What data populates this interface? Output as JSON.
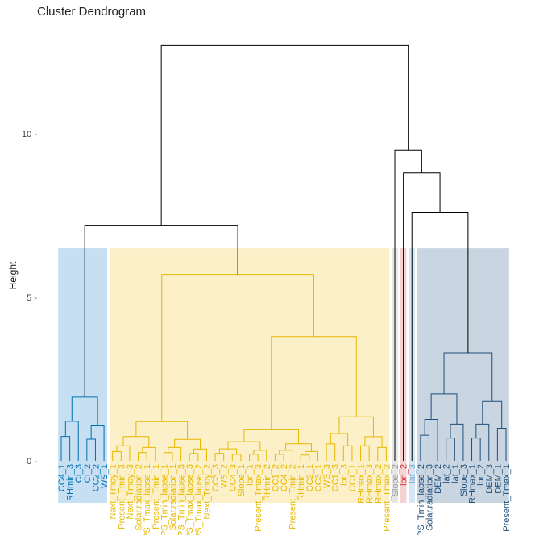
{
  "chart_data": {
    "type": "dendrogram",
    "title": "Cluster Dendrogram",
    "xlabel": "",
    "ylabel": "Height",
    "ylim": [
      0,
      13
    ],
    "y_ticks": [
      0,
      5,
      10
    ],
    "y_tick_labels": [
      "0 -",
      "5 -",
      "10 -"
    ],
    "grid": false,
    "clusters": [
      {
        "id": 1,
        "color": "#0072B2",
        "fill": "#C6DFF2",
        "leaves": [
          "CC4_1",
          "RHmin_3",
          "CI_3",
          "CI_2",
          "CC2_2",
          "WS_1"
        ]
      },
      {
        "id": 2,
        "color": "#E7B800",
        "fill": "#FBF0C8",
        "leaves": [
          "Next_Tmoy_1",
          "Present_Tmin_3",
          "Next_Tmoy_3",
          "Solar.radiation_2",
          "LDAPS_Tmax_lapse_1",
          "Present_Tmin_1",
          "LDAPS_Tmin_lapse_1",
          "Solar.radiation_1",
          "LDAPS_Tmin_lapse_3",
          "LDAPS_Tmax_lapse_3",
          "LDAPS_Tmax_lapse_2",
          "Next_Tmoy_2",
          "CC3_3",
          "WS_2",
          "CC4_3",
          "Slope_1",
          "lon_1",
          "Present_Tmax_3",
          "RHmin_2",
          "CC1_2",
          "CC4_2",
          "Present_Tmin_2",
          "RHmin_1",
          "CC2_1",
          "CC3_1",
          "WS_3",
          "CC1_3",
          "lon_3",
          "CC1_1",
          "RHmax_1",
          "RHmax_3",
          "RHmax_2",
          "Present_Tmax_2"
        ]
      },
      {
        "id": 3,
        "color": "#999999",
        "fill": "#E6E6E6",
        "leaves": [
          "Slope_2"
        ]
      },
      {
        "id": 4,
        "color": "#CC3333",
        "fill": "#F6D3D3",
        "leaves": [
          "lon_2"
        ]
      },
      {
        "id": 5,
        "color": "#7AA6CC",
        "fill": "#D5E6F4",
        "leaves": [
          "lat_3"
        ]
      },
      {
        "id": 6,
        "color": "#1F4E79",
        "fill": "#C9D6E2",
        "leaves": [
          "LDAPS_Tmin_lapse_2",
          "Solar.radiation_3",
          "DEM_2",
          "lat_2",
          "lat_1",
          "Slope_3",
          "RHmax_1",
          "lon_2",
          "DEM_3",
          "DEM_1",
          "Present_Tmax_1"
        ]
      }
    ],
    "leaf_labels": [
      "CC4_1",
      "RHmin_3",
      "CI_3",
      "CI_2",
      "CC2_2",
      "WS_1",
      "Next_Tmoy_1",
      "Present_Tmin_3",
      "Next_Tmoy_3",
      "Solar.radiation_2",
      "LDAPS_Tmax_lapse_1",
      "Present_Tmin_1",
      "LDAPS_Tmin_lapse_1",
      "Solar.radiation_1",
      "LDAPS_Tmin_lapse_3",
      "LDAPS_Tmax_lapse_3",
      "LDAPS_Tmax_lapse_2",
      "Next_Tmoy_2",
      "CC3_3",
      "WS_2",
      "CC4_3",
      "Slope_1",
      "lon_1",
      "Present_Tmax_3",
      "RHmin_2",
      "CC1_2",
      "CC4_2",
      "Present_Tmin_2",
      "RHmin_1",
      "CC2_1",
      "CC3_1",
      "WS_3",
      "CC1_3",
      "lon_3",
      "CC1_1",
      "RHmax_1",
      "RHmax_3",
      "RHmax_2",
      "Present_Tmax_2",
      "Slope_2",
      "lon_2",
      "lat_3",
      "LDAPS_Tmin_lapse_2",
      "Solar.radiation_3",
      "DEM_2",
      "lat_2",
      "lat_1",
      "Slope_3",
      "RHmax_1",
      "lon_2",
      "DEM_3",
      "DEM_1",
      "Present_Tmax_1"
    ],
    "root_height": 12.7
  }
}
